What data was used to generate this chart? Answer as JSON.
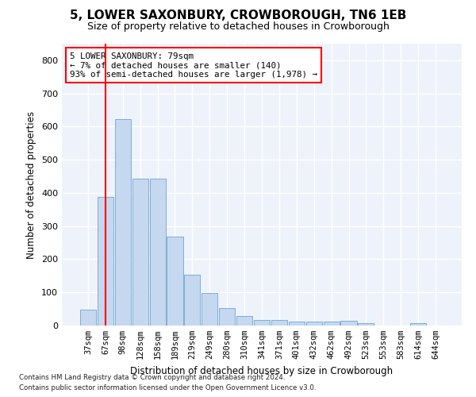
{
  "title": "5, LOWER SAXONBURY, CROWBOROUGH, TN6 1EB",
  "subtitle": "Size of property relative to detached houses in Crowborough",
  "xlabel": "Distribution of detached houses by size in Crowborough",
  "ylabel": "Number of detached properties",
  "categories": [
    "37sqm",
    "67sqm",
    "98sqm",
    "128sqm",
    "158sqm",
    "189sqm",
    "219sqm",
    "249sqm",
    "280sqm",
    "310sqm",
    "341sqm",
    "371sqm",
    "401sqm",
    "432sqm",
    "462sqm",
    "492sqm",
    "523sqm",
    "553sqm",
    "583sqm",
    "614sqm",
    "644sqm"
  ],
  "values": [
    47,
    387,
    623,
    443,
    443,
    268,
    153,
    98,
    52,
    29,
    17,
    17,
    11,
    11,
    11,
    15,
    8,
    0,
    0,
    8,
    0
  ],
  "bar_color": "#c5d8f0",
  "bar_edge_color": "#7bafd4",
  "vline_x": 1.0,
  "vline_color": "red",
  "ylim": [
    0,
    850
  ],
  "yticks": [
    0,
    100,
    200,
    300,
    400,
    500,
    600,
    700,
    800
  ],
  "annotation_text": "5 LOWER SAXONBURY: 79sqm\n← 7% of detached houses are smaller (140)\n93% of semi-detached houses are larger (1,978) →",
  "annotation_box_color": "white",
  "annotation_box_edgecolor": "red",
  "footer1": "Contains HM Land Registry data © Crown copyright and database right 2024.",
  "footer2": "Contains public sector information licensed under the Open Government Licence v3.0.",
  "bg_color": "#eef2fb",
  "grid_color": "white",
  "title_fontsize": 11,
  "subtitle_fontsize": 9,
  "tick_fontsize": 7.5,
  "ylabel_fontsize": 8.5,
  "xlabel_fontsize": 8.5
}
